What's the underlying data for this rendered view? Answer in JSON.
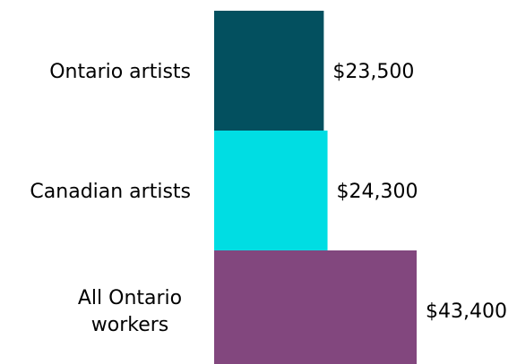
{
  "chart_data": {
    "type": "bar",
    "orientation": "horizontal",
    "categories": [
      [
        "Ontario artists"
      ],
      [
        "Canadian artists"
      ],
      [
        "All Ontario",
        "workers"
      ]
    ],
    "values": [
      23500,
      24300,
      43400
    ],
    "value_labels": [
      "$23,500",
      "$24,300",
      "$43,400"
    ],
    "colors": [
      "#03505f",
      "#00dde3",
      "#82477e"
    ],
    "title": "",
    "xlabel": "",
    "ylabel": "",
    "grid": false,
    "legend": "none"
  }
}
